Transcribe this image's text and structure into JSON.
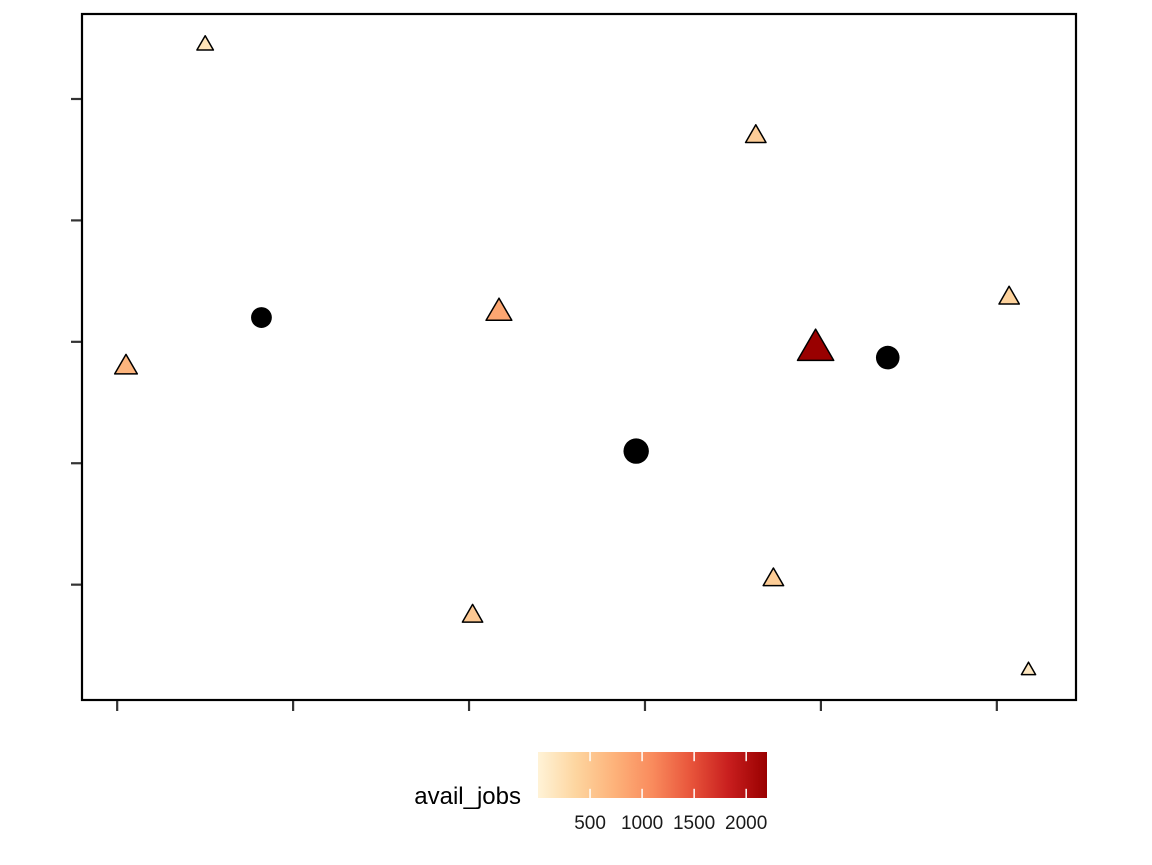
{
  "chart_data": {
    "type": "scatter",
    "title": "",
    "xlabel": "",
    "ylabel": "",
    "x_ticks": [
      0,
      1,
      2,
      3,
      4,
      5
    ],
    "y_ticks": [
      0,
      1,
      2,
      3,
      4
    ],
    "x_tick_labels_shown": false,
    "y_tick_labels_shown": false,
    "xlim": [
      -0.2,
      5.45
    ],
    "ylim": [
      -0.95,
      4.7
    ],
    "grid": false,
    "legend": {
      "title": "avail_jobs",
      "type": "colorbar",
      "position": "bottom",
      "range": [
        0,
        2200
      ],
      "breaks": [
        500,
        1000,
        1500,
        2000
      ],
      "colors": [
        "#fff3d7",
        "#fdd59f",
        "#fdb27a",
        "#f98b5d",
        "#e8553b",
        "#c81e1e",
        "#990000"
      ]
    },
    "series": [
      {
        "marker": "triangle",
        "points": [
          {
            "x": 0.05,
            "y": 1.8,
            "avail_jobs": 700,
            "size": 2.0
          },
          {
            "x": 0.5,
            "y": 4.45,
            "avail_jobs": 200,
            "size": 0.6
          },
          {
            "x": 2.02,
            "y": -0.25,
            "avail_jobs": 500,
            "size": 1.4
          },
          {
            "x": 2.17,
            "y": 2.25,
            "avail_jobs": 850,
            "size": 3.0
          },
          {
            "x": 3.63,
            "y": 3.7,
            "avail_jobs": 450,
            "size": 1.4
          },
          {
            "x": 3.73,
            "y": 0.05,
            "avail_jobs": 450,
            "size": 1.4
          },
          {
            "x": 3.97,
            "y": 1.95,
            "avail_jobs": 2200,
            "size": 8.0
          },
          {
            "x": 5.07,
            "y": 2.37,
            "avail_jobs": 400,
            "size": 1.4
          },
          {
            "x": 5.18,
            "y": -0.7,
            "avail_jobs": 150,
            "size": 0.3
          }
        ]
      },
      {
        "marker": "circle",
        "color": "#000000",
        "points": [
          {
            "x": 0.82,
            "y": 2.2,
            "size": 1.5
          },
          {
            "x": 2.95,
            "y": 1.1,
            "size": 3.5
          },
          {
            "x": 4.38,
            "y": 1.87,
            "size": 2.6
          }
        ]
      }
    ]
  }
}
